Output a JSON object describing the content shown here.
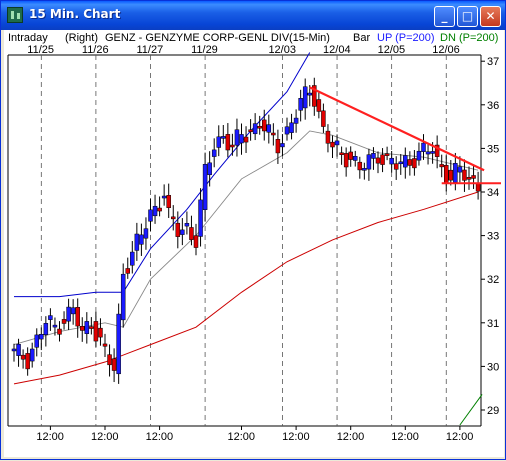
{
  "window": {
    "title": "15 Min. Chart",
    "buttons": {
      "minimize": "_",
      "maximize": "□",
      "close": "✕"
    }
  },
  "header": {
    "mode": "Intraday",
    "scale_side": "(Right)",
    "symbol": "GENZ - GENZYME CORP-GENL DIV",
    "interval": "(15-Min)",
    "chart_style": "Bar",
    "up_label": "UP (P=200)",
    "dn_label": "DN (P=200)"
  },
  "colors": {
    "up": "#1a1aff",
    "down": "#008000",
    "trend": "#ff2020",
    "ma_long": "#cc0000",
    "envelope": "#0000cc"
  },
  "chart_data": {
    "type": "candlestick",
    "dates": [
      "11/25",
      "11/26",
      "11/27",
      "11/29",
      "12/03",
      "12/04",
      "12/05",
      "12/06"
    ],
    "time_labels": [
      "12:00",
      "12:00",
      "12:00",
      "12:00",
      "12:00",
      "12:00",
      "12:00",
      "12:00"
    ],
    "y_ticks": [
      29,
      30,
      31,
      32,
      33,
      34,
      35,
      36,
      37
    ],
    "ylim": [
      28.9,
      37.2
    ],
    "price_path": [
      [
        0,
        30.3
      ],
      [
        3,
        30.2
      ],
      [
        5,
        30.6
      ],
      [
        7,
        31.0
      ],
      [
        9,
        30.9
      ],
      [
        11,
        31.1
      ],
      [
        13,
        31.3
      ],
      [
        15,
        30.7
      ],
      [
        17,
        31.1
      ],
      [
        18,
        30.8
      ],
      [
        20,
        30.3
      ],
      [
        22,
        29.9
      ],
      [
        24,
        32.2
      ],
      [
        26,
        32.6
      ],
      [
        28,
        33.0
      ],
      [
        30,
        33.5
      ],
      [
        32,
        33.8
      ],
      [
        33,
        34.0
      ],
      [
        34,
        33.4
      ],
      [
        36,
        33.1
      ],
      [
        38,
        33.2
      ],
      [
        40,
        32.9
      ],
      [
        42,
        34.4
      ],
      [
        44,
        35.1
      ],
      [
        46,
        35.3
      ],
      [
        48,
        35.0
      ],
      [
        50,
        35.3
      ],
      [
        52,
        35.4
      ],
      [
        54,
        35.6
      ],
      [
        56,
        35.3
      ],
      [
        58,
        35.1
      ],
      [
        60,
        35.4
      ],
      [
        62,
        35.8
      ],
      [
        64,
        36.2
      ],
      [
        65,
        36.4
      ],
      [
        66,
        36.2
      ],
      [
        68,
        35.4
      ],
      [
        70,
        35.0
      ],
      [
        72,
        34.9
      ],
      [
        74,
        34.8
      ],
      [
        76,
        34.5
      ],
      [
        78,
        34.7
      ],
      [
        80,
        34.9
      ],
      [
        82,
        34.7
      ],
      [
        84,
        34.6
      ],
      [
        86,
        34.7
      ],
      [
        88,
        34.8
      ],
      [
        90,
        34.9
      ],
      [
        92,
        35.0
      ],
      [
        93,
        34.7
      ],
      [
        94,
        34.6
      ],
      [
        96,
        34.3
      ],
      [
        98,
        34.5
      ],
      [
        100,
        34.3
      ],
      [
        102,
        34.2
      ]
    ],
    "ma_short": [
      [
        0,
        30.5
      ],
      [
        10,
        30.8
      ],
      [
        20,
        31.0
      ],
      [
        24,
        30.9
      ],
      [
        30,
        32.0
      ],
      [
        40,
        33.0
      ],
      [
        50,
        34.3
      ],
      [
        60,
        34.9
      ],
      [
        65,
        35.4
      ],
      [
        70,
        35.3
      ],
      [
        80,
        34.9
      ],
      [
        90,
        34.8
      ],
      [
        102,
        34.5
      ]
    ],
    "ma_long": [
      [
        0,
        29.6
      ],
      [
        10,
        29.8
      ],
      [
        20,
        30.1
      ],
      [
        30,
        30.5
      ],
      [
        40,
        30.9
      ],
      [
        50,
        31.7
      ],
      [
        60,
        32.4
      ],
      [
        70,
        32.9
      ],
      [
        80,
        33.3
      ],
      [
        90,
        33.6
      ],
      [
        102,
        34.0
      ]
    ],
    "envelope_up": [
      [
        0,
        31.6
      ],
      [
        10,
        31.6
      ],
      [
        18,
        31.7
      ],
      [
        24,
        31.7
      ],
      [
        30,
        32.7
      ],
      [
        38,
        33.6
      ],
      [
        44,
        34.4
      ],
      [
        52,
        35.4
      ],
      [
        60,
        36.3
      ],
      [
        65,
        37.2
      ]
    ],
    "trendline": [
      [
        65,
        36.4
      ],
      [
        102,
        34.5
      ]
    ],
    "support": [
      [
        94,
        34.2
      ],
      [
        104,
        34.2
      ]
    ],
    "dn_line": [
      [
        98,
        29.0
      ],
      [
        102,
        29.7
      ]
    ]
  }
}
